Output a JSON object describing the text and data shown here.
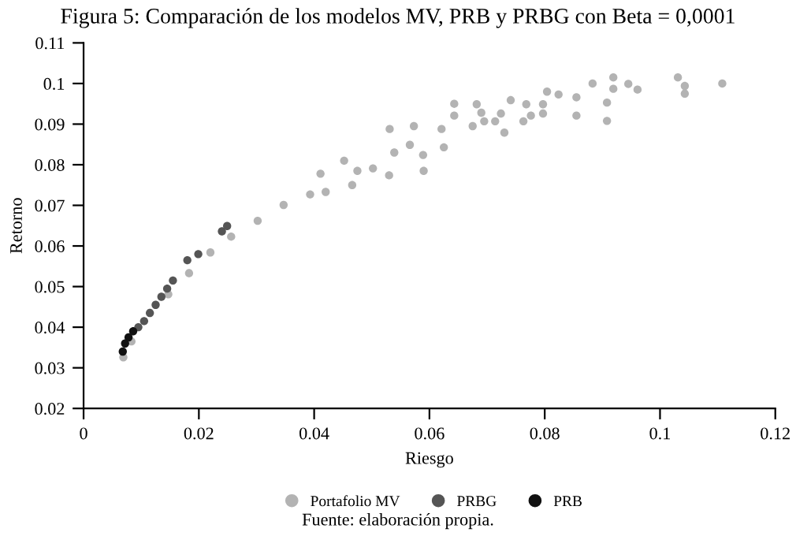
{
  "chart_data": {
    "type": "scatter",
    "title": "Figura 5: Comparación de los modelos MV, PRB y PRBG con Beta = 0,0001",
    "xlabel": "Riesgo",
    "ylabel": "Retorno",
    "xlim": [
      0,
      0.12
    ],
    "xticks": [
      0,
      0.02,
      0.04,
      0.06,
      0.08,
      0.1,
      0.12
    ],
    "ylim": [
      0.02,
      0.11
    ],
    "yticks": [
      0.02,
      0.03,
      0.04,
      0.05,
      0.06,
      0.07,
      0.08,
      0.09,
      0.1,
      0.11
    ],
    "grid": false,
    "legend": "bottom",
    "marker": "circle",
    "annotations": [
      "Fuente: elaboración propia."
    ],
    "series": [
      {
        "name": "Portafolio MV",
        "color": "#b3b3b3",
        "x": [
          0.0069,
          0.0083,
          0.0147,
          0.0183,
          0.022,
          0.0256,
          0.0302,
          0.0347,
          0.0393,
          0.0411,
          0.042,
          0.0452,
          0.0466,
          0.0475,
          0.0502,
          0.053,
          0.0531,
          0.0539,
          0.0566,
          0.0573,
          0.0589,
          0.059,
          0.0621,
          0.0625,
          0.0643,
          0.0643,
          0.0675,
          0.0682,
          0.069,
          0.0695,
          0.0714,
          0.0724,
          0.073,
          0.0741,
          0.0763,
          0.0768,
          0.0776,
          0.0797,
          0.0797,
          0.0804,
          0.0824,
          0.0855,
          0.0855,
          0.0883,
          0.0908,
          0.0908,
          0.0919,
          0.0919,
          0.0945,
          0.0961,
          0.1031,
          0.1043,
          0.1043,
          0.1108
        ],
        "values": [
          0.0326,
          0.0365,
          0.0481,
          0.0533,
          0.0584,
          0.0623,
          0.0662,
          0.0701,
          0.0727,
          0.0778,
          0.0733,
          0.081,
          0.075,
          0.0785,
          0.0791,
          0.0774,
          0.0888,
          0.083,
          0.0849,
          0.0895,
          0.0824,
          0.0785,
          0.0888,
          0.0843,
          0.095,
          0.0921,
          0.0895,
          0.0949,
          0.0928,
          0.0907,
          0.0907,
          0.0926,
          0.0879,
          0.0959,
          0.0907,
          0.0949,
          0.0921,
          0.0949,
          0.0926,
          0.098,
          0.0973,
          0.0966,
          0.0921,
          0.1,
          0.0953,
          0.0908,
          0.1015,
          0.0987,
          0.0999,
          0.0985,
          0.1015,
          0.0994,
          0.0975,
          0.1
        ]
      },
      {
        "name": "PRBG",
        "color": "#555555",
        "x": [
          0.0095,
          0.0105,
          0.0115,
          0.0125,
          0.0135,
          0.0145,
          0.0155,
          0.018,
          0.0199,
          0.024,
          0.0249
        ],
        "values": [
          0.04,
          0.0415,
          0.0435,
          0.0455,
          0.0475,
          0.0495,
          0.0515,
          0.0565,
          0.058,
          0.0636,
          0.0649
        ]
      },
      {
        "name": "PRB",
        "color": "#111111",
        "x": [
          0.0068,
          0.0072,
          0.0078,
          0.0086
        ],
        "values": [
          0.034,
          0.036,
          0.0375,
          0.039
        ]
      }
    ]
  }
}
